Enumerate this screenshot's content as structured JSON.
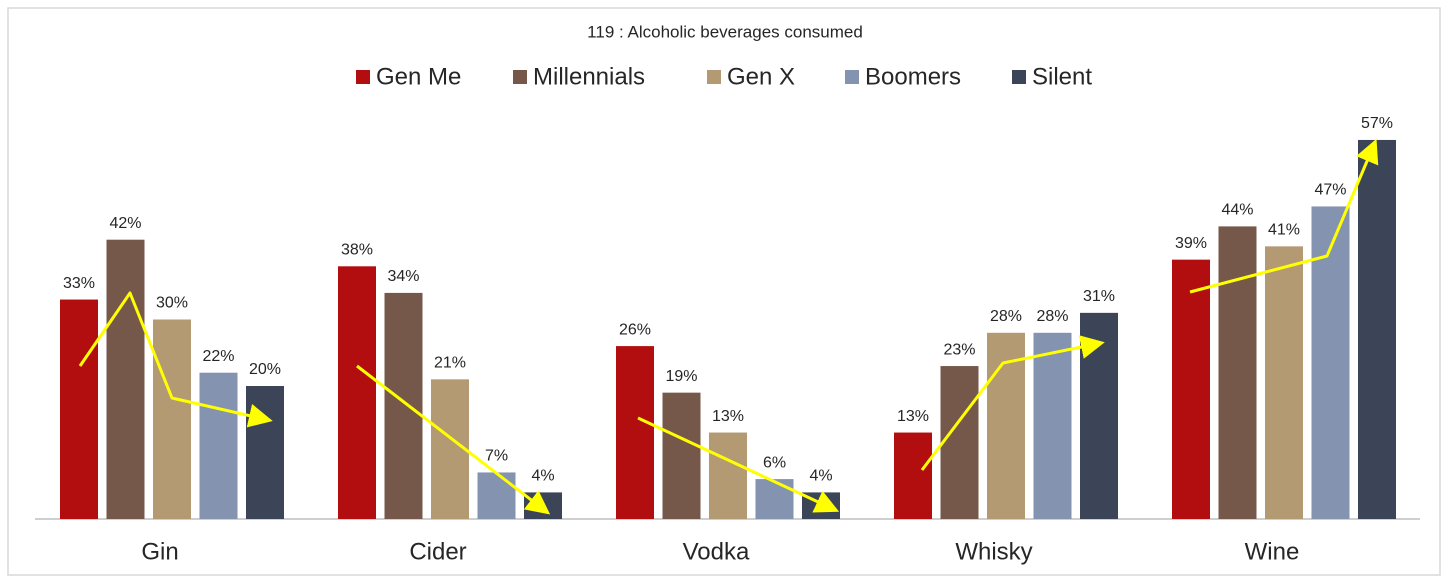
{
  "chart_data": {
    "type": "bar",
    "title": "119 : Alcoholic beverages consumed",
    "categories": [
      "Gin",
      "Cider",
      "Vodka",
      "Whisky",
      "Wine"
    ],
    "series": [
      {
        "name": "Gen Me",
        "color": "#b20e10",
        "values": [
          33,
          38,
          26,
          13,
          39
        ],
        "value_labels": [
          "33%",
          "38%",
          "26%",
          "13%",
          "39%"
        ]
      },
      {
        "name": "Millennials",
        "color": "#75584a",
        "values": [
          42,
          34,
          19,
          23,
          44
        ],
        "value_labels": [
          "42%",
          "34%",
          "19%",
          "23%",
          "44%"
        ]
      },
      {
        "name": "Gen X",
        "color": "#b39a73",
        "values": [
          30,
          21,
          13,
          28,
          41
        ],
        "value_labels": [
          "30%",
          "21%",
          "13%",
          "28%",
          "41%"
        ]
      },
      {
        "name": "Boomers",
        "color": "#8393b0",
        "values": [
          22,
          7,
          6,
          28,
          47
        ],
        "value_labels": [
          "22%",
          "7%",
          "6%",
          "28%",
          "47%"
        ]
      },
      {
        "name": "Silent",
        "color": "#3c4557",
        "values": [
          20,
          4,
          4,
          31,
          57
        ],
        "value_labels": [
          "20%",
          "4%",
          "4%",
          "31%",
          "57%"
        ]
      }
    ],
    "legend": "top"
  }
}
